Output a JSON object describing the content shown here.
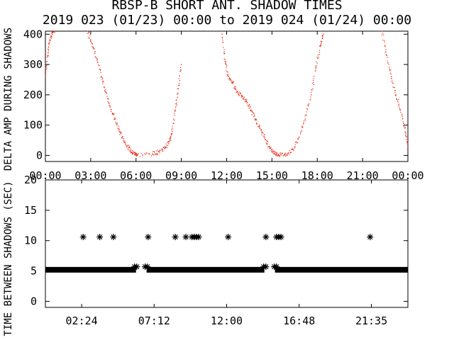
{
  "title_line1": "RBSP-B SHORT ANT. SHADOW TIMES",
  "title_line2": "2019 023 (01/23) 00:00 to 2019 024 (01/24) 00:00",
  "chart_data": [
    {
      "type": "scatter",
      "title": "",
      "xlabel": "",
      "ylabel": "DELTA AMP DURING SHADOWS",
      "x_unit": "hours",
      "xlim": [
        0,
        24
      ],
      "ylim": [
        -20,
        410
      ],
      "x_tick_labels": [
        "00:00",
        "03:00",
        "06:00",
        "09:00",
        "12:00",
        "15:00",
        "18:00",
        "21:00",
        "00:00"
      ],
      "x_tick_values": [
        0,
        3,
        6,
        9,
        12,
        15,
        18,
        21,
        24
      ],
      "y_tick_labels": [
        "0",
        "100",
        "200",
        "300",
        "400"
      ],
      "y_tick_values": [
        0,
        100,
        200,
        300,
        400
      ],
      "color": "#e8321e",
      "series": [
        {
          "x": [
            0.0,
            0.15,
            0.3,
            0.45,
            0.6,
            2.8,
            3.1,
            3.4,
            3.7,
            4.0,
            4.3,
            4.6,
            4.9,
            5.2,
            5.5,
            5.75,
            5.95,
            6.1,
            7.1,
            7.5,
            7.9,
            8.2,
            8.4,
            8.6,
            8.8,
            9.0,
            11.7,
            11.9,
            12.1,
            12.4,
            12.7,
            13.0,
            13.3,
            13.6,
            13.9,
            14.2,
            14.5,
            14.8,
            15.05,
            15.3,
            15.6,
            16.0,
            16.4,
            16.8,
            17.2,
            17.6,
            17.9,
            18.2,
            18.4,
            22.3,
            22.6,
            22.9,
            23.2,
            23.5,
            23.8,
            24.0
          ],
          "y": [
            260,
            330,
            380,
            405,
            410,
            410,
            370,
            320,
            260,
            210,
            160,
            120,
            80,
            50,
            25,
            10,
            5,
            2,
            5,
            12,
            25,
            45,
            80,
            150,
            220,
            300,
            400,
            310,
            260,
            240,
            210,
            195,
            180,
            150,
            120,
            90,
            60,
            30,
            12,
            5,
            2,
            5,
            20,
            60,
            120,
            200,
            290,
            360,
            400,
            410,
            330,
            260,
            200,
            150,
            90,
            30
          ]
        }
      ]
    },
    {
      "type": "scatter",
      "title": "",
      "xlabel": "",
      "ylabel": "TIME BETWEEN SHADOWS (SEC)",
      "x_unit": "hours",
      "xlim": [
        0,
        24
      ],
      "ylim": [
        -1,
        20
      ],
      "x_tick_labels": [
        "02:24",
        "07:12",
        "12:00",
        "16:48",
        "21:35"
      ],
      "x_tick_values": [
        2.4,
        7.2,
        12.0,
        16.8,
        21.583
      ],
      "y_tick_labels": [
        "0",
        "5",
        "10",
        "15",
        "20"
      ],
      "y_tick_values": [
        0,
        5,
        10,
        15,
        20
      ],
      "marker": "asterisk",
      "baseline": {
        "y": 5.2,
        "x_ranges": [
          [
            0.0,
            6.0
          ],
          [
            6.7,
            14.5
          ],
          [
            15.2,
            24.0
          ]
        ]
      },
      "series": [
        {
          "x": [
            2.5,
            3.6,
            4.5,
            6.8,
            8.6,
            9.3,
            9.7,
            9.85,
            10.0,
            10.15,
            12.1,
            14.6,
            15.3,
            15.45,
            15.6,
            21.5,
            5.9,
            6.05,
            6.6,
            6.75,
            14.45,
            14.6,
            15.15,
            15.3
          ],
          "y": [
            10.6,
            10.6,
            10.6,
            10.6,
            10.6,
            10.6,
            10.6,
            10.6,
            10.6,
            10.6,
            10.6,
            10.6,
            10.6,
            10.6,
            10.6,
            10.6,
            5.7,
            5.7,
            5.7,
            5.7,
            5.7,
            5.7,
            5.7,
            5.7
          ]
        }
      ]
    }
  ]
}
